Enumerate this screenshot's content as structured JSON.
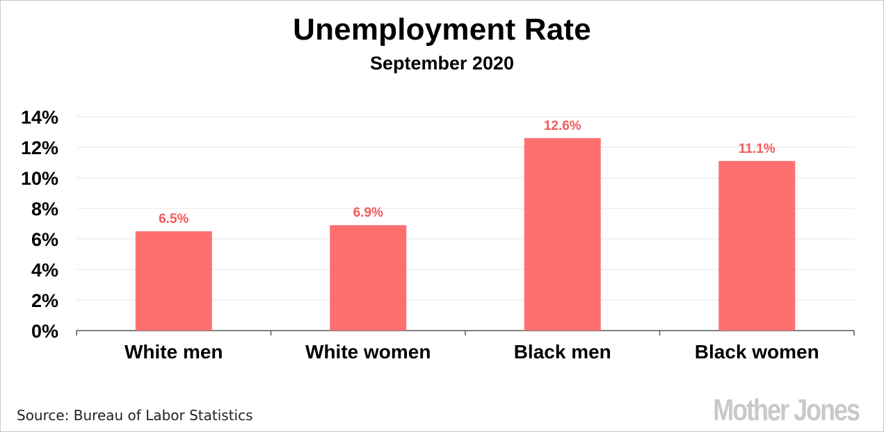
{
  "chart_data": {
    "type": "bar",
    "title": "Unemployment Rate",
    "subtitle": "September 2020",
    "categories": [
      "White men",
      "White women",
      "Black men",
      "Black women"
    ],
    "values": [
      6.5,
      6.9,
      12.6,
      11.1
    ],
    "data_labels": [
      "6.5%",
      "6.9%",
      "12.6%",
      "11.1%"
    ],
    "y_ticks": [
      0,
      2,
      4,
      6,
      8,
      10,
      12,
      14
    ],
    "y_tick_labels": [
      "0%",
      "2%",
      "4%",
      "6%",
      "8%",
      "10%",
      "12%",
      "14%"
    ],
    "ylim": [
      0,
      14
    ],
    "grid": true,
    "legend": "none",
    "xlabel": "",
    "ylabel": ""
  },
  "colors": {
    "bar": "#ff6f6f",
    "data_label": "#f25a5a",
    "grid": "#e6e6e6",
    "axis": "#555555"
  },
  "source": "Source: Bureau of Labor Statistics",
  "logo": "Mother Jones"
}
